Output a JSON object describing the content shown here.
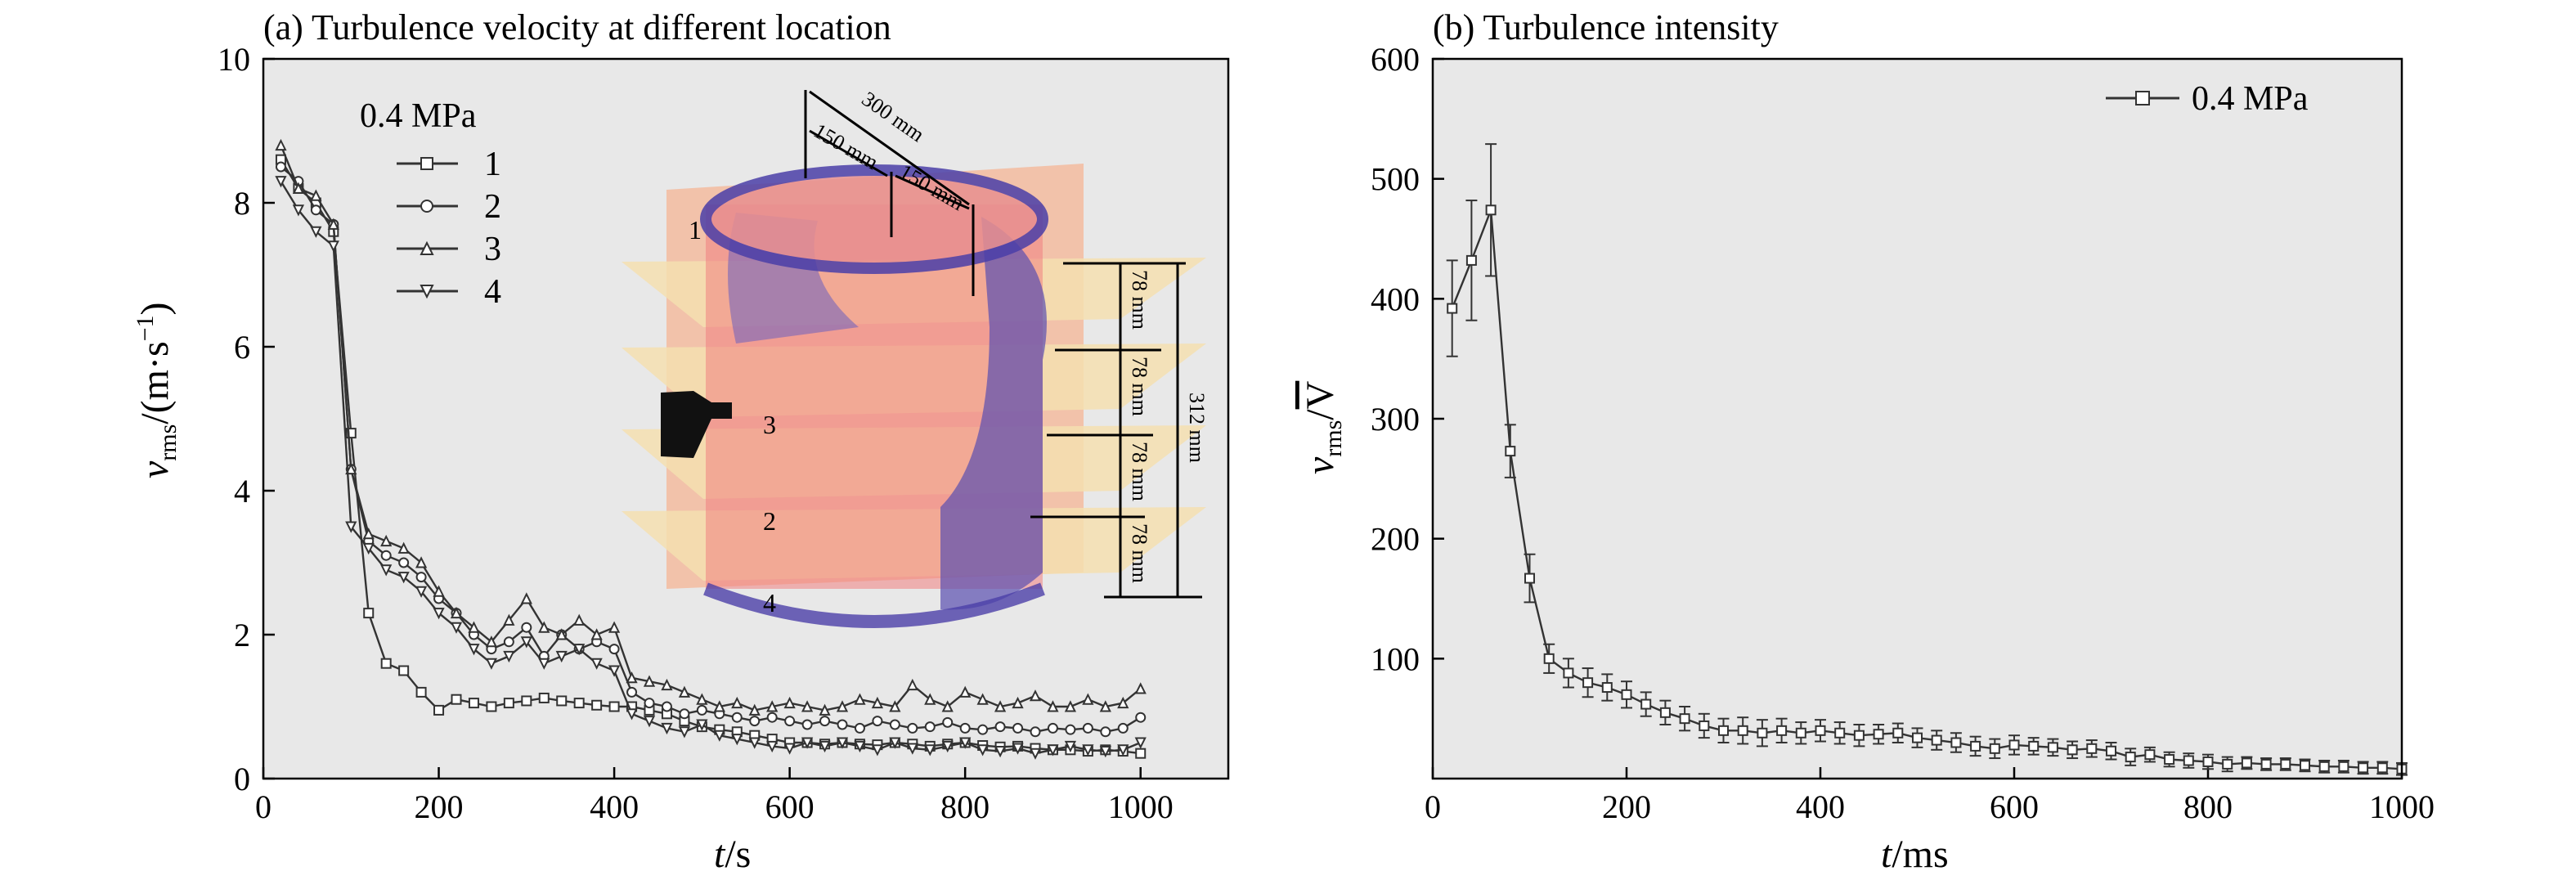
{
  "figure": {
    "panel_a_title": "(a) Turbulence velocity at different location",
    "panel_b_title": "(b) Turbulence intensity"
  },
  "chart_data": [
    {
      "type": "line",
      "title": "(a) Turbulence velocity at different location",
      "xlabel_var": "t",
      "xlabel_unit": "/s",
      "ylabel_var": "v",
      "ylabel_sub": "rms",
      "ylabel_unit": "/(m·s",
      "ylabel_exp": "−1",
      "ylabel_close": ")",
      "xlim": [
        0,
        1100
      ],
      "ylim": [
        0,
        10
      ],
      "xticks": [
        0,
        200,
        400,
        600,
        800,
        1000
      ],
      "yticks": [
        0,
        2,
        4,
        6,
        8,
        10
      ],
      "legend_title": "0.4 MPa",
      "legend_position": "top-left",
      "x": [
        20,
        40,
        60,
        80,
        100,
        120,
        140,
        160,
        180,
        200,
        220,
        240,
        260,
        280,
        300,
        320,
        340,
        360,
        380,
        400,
        420,
        440,
        460,
        480,
        500,
        520,
        540,
        560,
        580,
        600,
        620,
        640,
        660,
        680,
        700,
        720,
        740,
        760,
        780,
        800,
        820,
        840,
        860,
        880,
        900,
        920,
        940,
        960,
        980,
        1000
      ],
      "series": [
        {
          "name": "1",
          "marker": "square",
          "values": [
            8.6,
            8.2,
            8.0,
            7.6,
            4.8,
            2.3,
            1.6,
            1.5,
            1.2,
            0.95,
            1.1,
            1.05,
            1.0,
            1.05,
            1.08,
            1.12,
            1.08,
            1.05,
            1.02,
            1.0,
            1.0,
            0.95,
            0.9,
            0.8,
            0.72,
            0.68,
            0.65,
            0.6,
            0.55,
            0.5,
            0.5,
            0.48,
            0.5,
            0.48,
            0.47,
            0.5,
            0.48,
            0.45,
            0.48,
            0.5,
            0.46,
            0.44,
            0.45,
            0.42,
            0.4,
            0.4,
            0.38,
            0.4,
            0.38,
            0.35
          ]
        },
        {
          "name": "2",
          "marker": "circle",
          "values": [
            8.5,
            8.3,
            7.9,
            7.7,
            4.3,
            3.3,
            3.1,
            3.0,
            2.8,
            2.5,
            2.3,
            2.0,
            1.8,
            1.9,
            2.1,
            1.7,
            2.0,
            1.8,
            1.9,
            1.8,
            1.2,
            1.05,
            1.0,
            0.9,
            0.95,
            0.9,
            0.85,
            0.8,
            0.85,
            0.8,
            0.75,
            0.8,
            0.75,
            0.7,
            0.8,
            0.75,
            0.7,
            0.72,
            0.78,
            0.7,
            0.68,
            0.72,
            0.7,
            0.65,
            0.7,
            0.68,
            0.7,
            0.65,
            0.7,
            0.85
          ]
        },
        {
          "name": "3",
          "marker": "triangle-up",
          "values": [
            8.8,
            8.2,
            8.1,
            7.7,
            4.3,
            3.4,
            3.3,
            3.2,
            3.0,
            2.6,
            2.3,
            2.1,
            1.9,
            2.2,
            2.5,
            2.1,
            2.0,
            2.2,
            2.0,
            2.1,
            1.4,
            1.35,
            1.3,
            1.2,
            1.1,
            1.0,
            1.05,
            0.95,
            1.0,
            1.05,
            1.0,
            0.95,
            1.0,
            1.1,
            1.05,
            1.0,
            1.3,
            1.1,
            1.0,
            1.2,
            1.1,
            1.0,
            1.05,
            1.15,
            1.0,
            1.0,
            1.1,
            1.0,
            1.05,
            1.25
          ]
        },
        {
          "name": "4",
          "marker": "triangle-down",
          "values": [
            8.3,
            7.9,
            7.6,
            7.4,
            3.5,
            3.2,
            2.9,
            2.8,
            2.6,
            2.3,
            2.1,
            1.8,
            1.6,
            1.7,
            1.9,
            1.6,
            1.7,
            1.8,
            1.6,
            1.5,
            0.9,
            0.8,
            0.7,
            0.65,
            0.75,
            0.6,
            0.55,
            0.5,
            0.45,
            0.42,
            0.5,
            0.45,
            0.5,
            0.45,
            0.4,
            0.5,
            0.42,
            0.4,
            0.45,
            0.5,
            0.4,
            0.38,
            0.42,
            0.35,
            0.4,
            0.45,
            0.4,
            0.38,
            0.4,
            0.5
          ]
        }
      ],
      "inset": {
        "labels": [
          "1",
          "3",
          "2",
          "4"
        ],
        "dims": [
          "300 mm",
          "150 mm",
          "150 mm",
          "78 mm",
          "78 mm",
          "78 mm",
          "78 mm",
          "312 mm"
        ]
      }
    },
    {
      "type": "line",
      "title": "(b) Turbulence intensity",
      "xlabel_var": "t",
      "xlabel_unit": "/ms",
      "ylabel_var": "v",
      "ylabel_sub": "rms",
      "ylabel_slash": "/",
      "ylabel_over": "V",
      "xlim": [
        0,
        1000
      ],
      "ylim": [
        0,
        600
      ],
      "xticks": [
        0,
        200,
        400,
        600,
        800,
        1000
      ],
      "yticks": [
        100,
        200,
        300,
        400,
        500,
        600
      ],
      "legend_position": "top-right",
      "series": [
        {
          "name": "0.4 MPa",
          "marker": "square",
          "x": [
            20,
            40,
            60,
            80,
            100,
            120,
            140,
            160,
            180,
            200,
            220,
            240,
            260,
            280,
            300,
            320,
            340,
            360,
            380,
            400,
            420,
            440,
            460,
            480,
            500,
            520,
            540,
            560,
            580,
            600,
            620,
            640,
            660,
            680,
            700,
            720,
            740,
            760,
            780,
            800,
            820,
            840,
            860,
            880,
            900,
            920,
            940,
            960,
            980,
            1000
          ],
          "values": [
            392,
            432,
            474,
            273,
            167,
            100,
            88,
            80,
            76,
            70,
            62,
            55,
            50,
            44,
            40,
            40,
            38,
            40,
            38,
            40,
            38,
            36,
            37,
            38,
            34,
            32,
            30,
            27,
            25,
            28,
            27,
            26,
            24,
            25,
            23,
            18,
            20,
            16,
            15,
            14,
            12,
            13,
            12,
            12,
            11,
            10,
            10,
            9,
            9,
            8
          ],
          "errors": [
            40,
            50,
            55,
            22,
            20,
            12,
            12,
            12,
            11,
            11,
            10,
            10,
            10,
            10,
            10,
            11,
            11,
            10,
            9,
            9,
            9,
            9,
            8,
            8,
            8,
            8,
            8,
            8,
            8,
            8,
            7,
            7,
            7,
            7,
            7,
            7,
            6,
            6,
            6,
            6,
            6,
            5,
            5,
            5,
            5,
            5,
            5,
            5,
            5,
            5
          ]
        }
      ]
    }
  ]
}
